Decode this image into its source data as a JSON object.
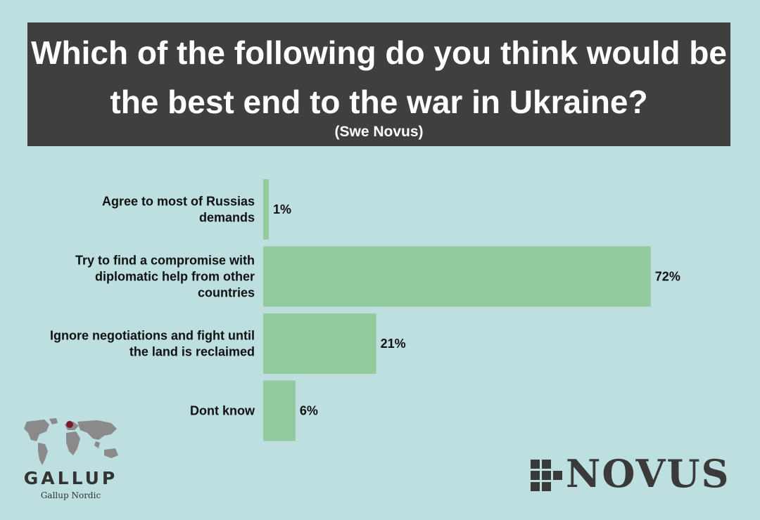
{
  "header": {
    "title": "Which of the following do you think would be the best end to the war in Ukraine?",
    "subtitle": "(Swe Novus)"
  },
  "chart_data": {
    "type": "bar",
    "orientation": "horizontal",
    "title": "Which of the following do you think would be the best end to the war in Ukraine?",
    "subtitle": "(Swe Novus)",
    "categories": [
      [
        "Agree to most of Russias",
        "demands"
      ],
      [
        "Try to find a compromise with",
        "diplomatic help from other",
        "countries"
      ],
      [
        "Ignore negotiations and fight until",
        "the land is reclaimed"
      ],
      [
        "Dont know"
      ]
    ],
    "values": [
      1,
      72,
      21,
      6
    ],
    "value_labels": [
      "1%",
      "72%",
      "21%",
      "6%"
    ],
    "unit": "%",
    "xlim": [
      0,
      100
    ],
    "grid": false,
    "legend": "none",
    "bar_color": "#93cb9e"
  },
  "logos": {
    "gallup": {
      "name": "GALLUP",
      "subtitle": "Gallup Nordic",
      "icon": "world-map-icon",
      "dot_color": "#7b1a2a"
    },
    "novus": {
      "name": "NOVUS",
      "icon": "cross-mark-icon"
    }
  },
  "colors": {
    "background": "#bddfe0",
    "header_background": "#3f3f3f",
    "header_text": "#ffffff"
  }
}
